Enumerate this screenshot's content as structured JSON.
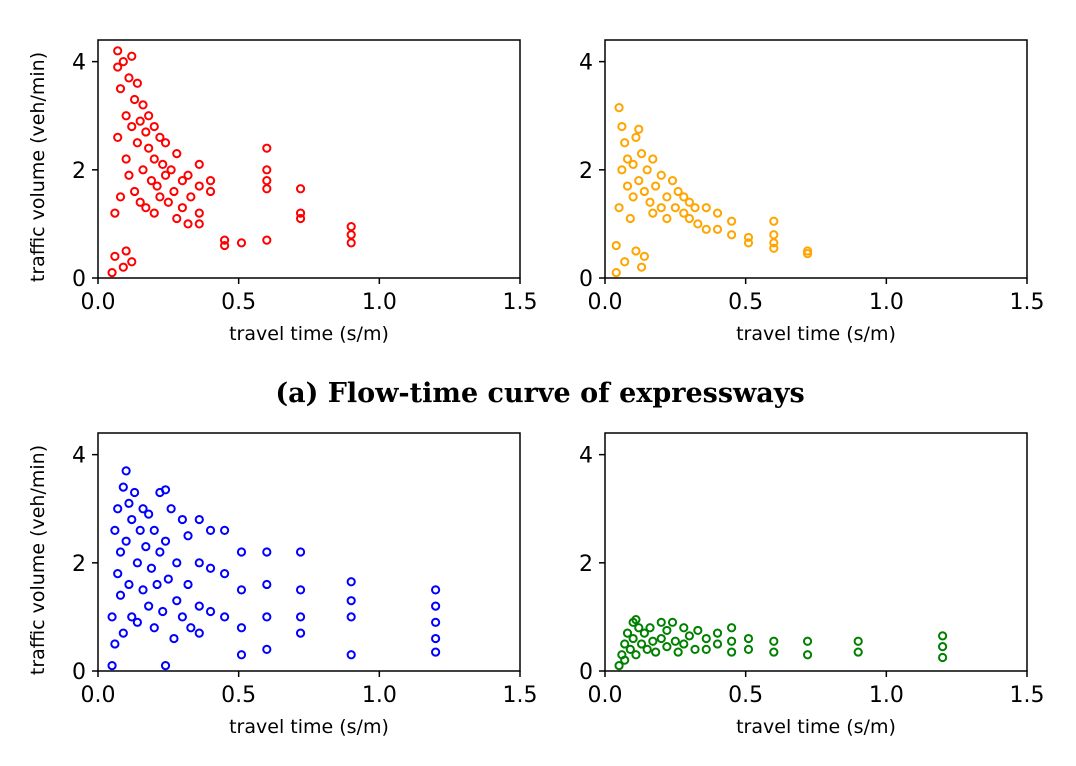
{
  "captions": [
    {
      "text": "(a) Flow-time curve of expressways"
    }
  ],
  "chart_data": [
    {
      "type": "scatter",
      "title": "",
      "xlabel": "travel time (s/m)",
      "ylabel": "traffic volume (veh/min)",
      "xlim": [
        0,
        1.5
      ],
      "ylim": [
        0,
        4.4
      ],
      "xticks": [
        "0.0",
        "0.5",
        "1.0",
        "1.5"
      ],
      "yticks": [
        "0",
        "2",
        "4"
      ],
      "marker_color": "#ff0000",
      "marker": "open-circle",
      "points": [
        [
          0.05,
          0.1
        ],
        [
          0.06,
          0.4
        ],
        [
          0.06,
          1.2
        ],
        [
          0.07,
          2.6
        ],
        [
          0.07,
          3.9
        ],
        [
          0.07,
          4.2
        ],
        [
          0.08,
          3.5
        ],
        [
          0.08,
          1.5
        ],
        [
          0.09,
          4.0
        ],
        [
          0.09,
          0.2
        ],
        [
          0.1,
          3.0
        ],
        [
          0.1,
          2.2
        ],
        [
          0.1,
          0.5
        ],
        [
          0.11,
          3.7
        ],
        [
          0.11,
          1.9
        ],
        [
          0.12,
          4.1
        ],
        [
          0.12,
          2.8
        ],
        [
          0.12,
          0.3
        ],
        [
          0.13,
          3.3
        ],
        [
          0.13,
          1.6
        ],
        [
          0.14,
          2.5
        ],
        [
          0.14,
          3.6
        ],
        [
          0.15,
          2.9
        ],
        [
          0.15,
          1.4
        ],
        [
          0.16,
          3.2
        ],
        [
          0.16,
          2.0
        ],
        [
          0.17,
          2.7
        ],
        [
          0.17,
          1.3
        ],
        [
          0.18,
          2.4
        ],
        [
          0.18,
          3.0
        ],
        [
          0.19,
          1.8
        ],
        [
          0.2,
          2.2
        ],
        [
          0.2,
          2.8
        ],
        [
          0.2,
          1.2
        ],
        [
          0.21,
          1.7
        ],
        [
          0.22,
          2.6
        ],
        [
          0.22,
          1.5
        ],
        [
          0.23,
          2.1
        ],
        [
          0.24,
          1.9
        ],
        [
          0.24,
          2.5
        ],
        [
          0.25,
          1.4
        ],
        [
          0.26,
          2.0
        ],
        [
          0.27,
          1.6
        ],
        [
          0.28,
          2.3
        ],
        [
          0.28,
          1.1
        ],
        [
          0.3,
          1.8
        ],
        [
          0.3,
          1.3
        ],
        [
          0.32,
          1.9
        ],
        [
          0.32,
          1.0
        ],
        [
          0.33,
          1.5
        ],
        [
          0.36,
          2.1
        ],
        [
          0.36,
          1.7
        ],
        [
          0.36,
          1.2
        ],
        [
          0.36,
          1.0
        ],
        [
          0.4,
          1.8
        ],
        [
          0.4,
          1.6
        ],
        [
          0.45,
          0.7
        ],
        [
          0.45,
          0.6
        ],
        [
          0.51,
          0.65
        ],
        [
          0.6,
          2.4
        ],
        [
          0.6,
          2.0
        ],
        [
          0.6,
          1.8
        ],
        [
          0.6,
          1.65
        ],
        [
          0.6,
          0.7
        ],
        [
          0.72,
          1.65
        ],
        [
          0.72,
          1.2
        ],
        [
          0.72,
          1.1
        ],
        [
          0.9,
          0.95
        ],
        [
          0.9,
          0.8
        ],
        [
          0.9,
          0.65
        ]
      ]
    },
    {
      "type": "scatter",
      "title": "",
      "xlabel": "travel time (s/m)",
      "ylabel": "",
      "xlim": [
        0,
        1.5
      ],
      "ylim": [
        0,
        4.4
      ],
      "xticks": [
        "0.0",
        "0.5",
        "1.0",
        "1.5"
      ],
      "yticks": [
        "0",
        "2",
        "4"
      ],
      "marker_color": "#ffa500",
      "marker": "open-circle",
      "points": [
        [
          0.04,
          0.1
        ],
        [
          0.04,
          0.6
        ],
        [
          0.05,
          1.3
        ],
        [
          0.05,
          3.15
        ],
        [
          0.06,
          2.8
        ],
        [
          0.06,
          2.0
        ],
        [
          0.07,
          2.5
        ],
        [
          0.07,
          0.3
        ],
        [
          0.08,
          1.7
        ],
        [
          0.08,
          2.2
        ],
        [
          0.09,
          1.1
        ],
        [
          0.1,
          2.1
        ],
        [
          0.1,
          1.5
        ],
        [
          0.11,
          2.6
        ],
        [
          0.11,
          0.5
        ],
        [
          0.12,
          2.75
        ],
        [
          0.12,
          1.8
        ],
        [
          0.13,
          2.3
        ],
        [
          0.13,
          0.2
        ],
        [
          0.14,
          1.6
        ],
        [
          0.14,
          0.4
        ],
        [
          0.15,
          2.0
        ],
        [
          0.16,
          1.4
        ],
        [
          0.17,
          2.2
        ],
        [
          0.17,
          1.2
        ],
        [
          0.18,
          1.7
        ],
        [
          0.2,
          1.9
        ],
        [
          0.2,
          1.3
        ],
        [
          0.22,
          1.5
        ],
        [
          0.22,
          1.1
        ],
        [
          0.24,
          1.8
        ],
        [
          0.25,
          1.3
        ],
        [
          0.26,
          1.6
        ],
        [
          0.28,
          1.2
        ],
        [
          0.28,
          1.5
        ],
        [
          0.3,
          1.4
        ],
        [
          0.3,
          1.1
        ],
        [
          0.32,
          1.3
        ],
        [
          0.33,
          1.0
        ],
        [
          0.36,
          1.3
        ],
        [
          0.36,
          0.9
        ],
        [
          0.4,
          1.2
        ],
        [
          0.4,
          0.9
        ],
        [
          0.45,
          1.05
        ],
        [
          0.45,
          0.8
        ],
        [
          0.51,
          0.75
        ],
        [
          0.51,
          0.65
        ],
        [
          0.6,
          1.05
        ],
        [
          0.6,
          0.8
        ],
        [
          0.6,
          0.65
        ],
        [
          0.6,
          0.55
        ],
        [
          0.72,
          0.5
        ],
        [
          0.72,
          0.45
        ]
      ]
    },
    {
      "type": "scatter",
      "title": "",
      "xlabel": "travel time (s/m)",
      "ylabel": "traffic volume (veh/min)",
      "xlim": [
        0,
        1.5
      ],
      "ylim": [
        0,
        4.4
      ],
      "xticks": [
        "0.0",
        "0.5",
        "1.0",
        "1.5"
      ],
      "yticks": [
        "0",
        "2",
        "4"
      ],
      "marker_color": "#0000ff",
      "marker": "open-circle",
      "points": [
        [
          0.05,
          0.1
        ],
        [
          0.05,
          1.0
        ],
        [
          0.06,
          2.6
        ],
        [
          0.06,
          0.5
        ],
        [
          0.07,
          1.8
        ],
        [
          0.07,
          3.0
        ],
        [
          0.08,
          2.2
        ],
        [
          0.08,
          1.4
        ],
        [
          0.09,
          3.4
        ],
        [
          0.09,
          0.7
        ],
        [
          0.1,
          3.7
        ],
        [
          0.1,
          2.4
        ],
        [
          0.11,
          1.6
        ],
        [
          0.11,
          3.1
        ],
        [
          0.12,
          2.8
        ],
        [
          0.12,
          1.0
        ],
        [
          0.13,
          3.3
        ],
        [
          0.14,
          2.0
        ],
        [
          0.14,
          0.9
        ],
        [
          0.15,
          2.6
        ],
        [
          0.16,
          1.5
        ],
        [
          0.16,
          3.0
        ],
        [
          0.17,
          2.3
        ],
        [
          0.18,
          1.2
        ],
        [
          0.18,
          2.9
        ],
        [
          0.19,
          1.9
        ],
        [
          0.2,
          2.6
        ],
        [
          0.2,
          0.8
        ],
        [
          0.21,
          1.6
        ],
        [
          0.22,
          3.3
        ],
        [
          0.22,
          2.2
        ],
        [
          0.23,
          1.1
        ],
        [
          0.24,
          3.35
        ],
        [
          0.24,
          0.1
        ],
        [
          0.24,
          2.4
        ],
        [
          0.25,
          1.7
        ],
        [
          0.26,
          3.0
        ],
        [
          0.27,
          0.6
        ],
        [
          0.28,
          2.0
        ],
        [
          0.28,
          1.3
        ],
        [
          0.3,
          2.8
        ],
        [
          0.3,
          1.0
        ],
        [
          0.32,
          2.5
        ],
        [
          0.32,
          1.6
        ],
        [
          0.33,
          0.8
        ],
        [
          0.36,
          2.8
        ],
        [
          0.36,
          2.0
        ],
        [
          0.36,
          1.2
        ],
        [
          0.36,
          0.7
        ],
        [
          0.4,
          2.6
        ],
        [
          0.4,
          1.9
        ],
        [
          0.4,
          1.1
        ],
        [
          0.45,
          2.6
        ],
        [
          0.45,
          1.8
        ],
        [
          0.45,
          1.0
        ],
        [
          0.51,
          2.2
        ],
        [
          0.51,
          1.5
        ],
        [
          0.51,
          0.8
        ],
        [
          0.51,
          0.3
        ],
        [
          0.6,
          2.2
        ],
        [
          0.6,
          1.6
        ],
        [
          0.6,
          1.0
        ],
        [
          0.6,
          0.4
        ],
        [
          0.72,
          2.2
        ],
        [
          0.72,
          1.5
        ],
        [
          0.72,
          1.0
        ],
        [
          0.72,
          0.7
        ],
        [
          0.9,
          1.65
        ],
        [
          0.9,
          1.3
        ],
        [
          0.9,
          1.0
        ],
        [
          0.9,
          0.3
        ],
        [
          1.2,
          1.5
        ],
        [
          1.2,
          1.2
        ],
        [
          1.2,
          0.9
        ],
        [
          1.2,
          0.6
        ],
        [
          1.2,
          0.35
        ]
      ]
    },
    {
      "type": "scatter",
      "title": "",
      "xlabel": "travel time (s/m)",
      "ylabel": "",
      "xlim": [
        0,
        1.5
      ],
      "ylim": [
        0,
        4.4
      ],
      "xticks": [
        "0.0",
        "0.5",
        "1.0",
        "1.5"
      ],
      "yticks": [
        "0",
        "2",
        "4"
      ],
      "marker_color": "#008000",
      "marker": "open-circle",
      "points": [
        [
          0.05,
          0.1
        ],
        [
          0.06,
          0.3
        ],
        [
          0.07,
          0.5
        ],
        [
          0.07,
          0.2
        ],
        [
          0.08,
          0.7
        ],
        [
          0.09,
          0.4
        ],
        [
          0.1,
          0.9
        ],
        [
          0.1,
          0.6
        ],
        [
          0.11,
          0.95
        ],
        [
          0.11,
          0.3
        ],
        [
          0.12,
          0.8
        ],
        [
          0.13,
          0.5
        ],
        [
          0.14,
          0.7
        ],
        [
          0.15,
          0.4
        ],
        [
          0.16,
          0.8
        ],
        [
          0.17,
          0.55
        ],
        [
          0.18,
          0.35
        ],
        [
          0.2,
          0.9
        ],
        [
          0.2,
          0.6
        ],
        [
          0.22,
          0.75
        ],
        [
          0.22,
          0.45
        ],
        [
          0.24,
          0.9
        ],
        [
          0.25,
          0.55
        ],
        [
          0.26,
          0.35
        ],
        [
          0.28,
          0.8
        ],
        [
          0.28,
          0.5
        ],
        [
          0.3,
          0.65
        ],
        [
          0.32,
          0.4
        ],
        [
          0.33,
          0.75
        ],
        [
          0.36,
          0.6
        ],
        [
          0.36,
          0.4
        ],
        [
          0.4,
          0.7
        ],
        [
          0.4,
          0.5
        ],
        [
          0.45,
          0.8
        ],
        [
          0.45,
          0.55
        ],
        [
          0.45,
          0.35
        ],
        [
          0.51,
          0.6
        ],
        [
          0.51,
          0.4
        ],
        [
          0.6,
          0.55
        ],
        [
          0.6,
          0.35
        ],
        [
          0.72,
          0.55
        ],
        [
          0.72,
          0.3
        ],
        [
          0.9,
          0.55
        ],
        [
          0.9,
          0.35
        ],
        [
          1.2,
          0.65
        ],
        [
          1.2,
          0.45
        ],
        [
          1.2,
          0.25
        ]
      ]
    }
  ]
}
